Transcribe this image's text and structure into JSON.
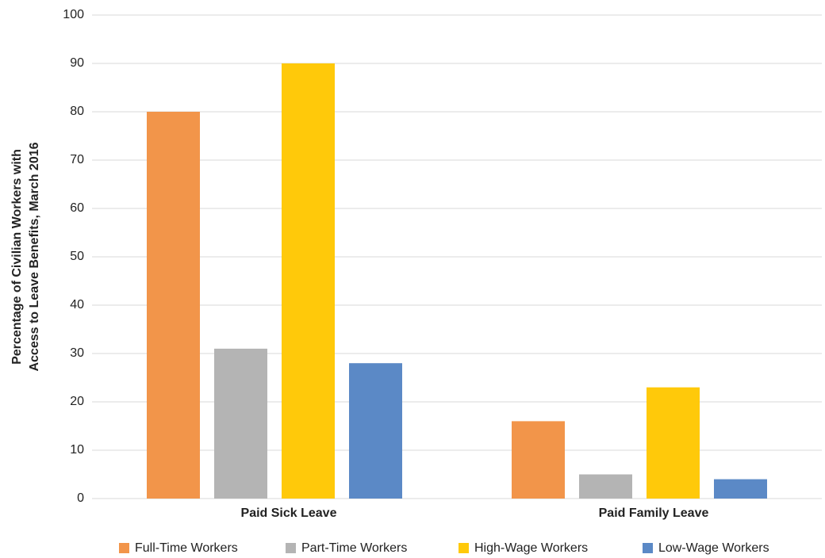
{
  "chart_data": {
    "type": "bar",
    "y_label": [
      "Percentage of Civilian Workers with",
      "Access to Leave Benefits, March 2016"
    ],
    "categories": [
      "Paid Sick Leave",
      "Paid Family Leave"
    ],
    "series": [
      {
        "name": "Full-Time Workers",
        "color": "#f2954a",
        "values": [
          80,
          16
        ]
      },
      {
        "name": "Part-Time Workers",
        "color": "#b4b4b4",
        "values": [
          31,
          5
        ]
      },
      {
        "name": "High-Wage Workers",
        "color": "#ffc90a",
        "values": [
          90,
          23
        ]
      },
      {
        "name": "Low-Wage Workers",
        "color": "#5b89c6",
        "values": [
          28,
          4
        ]
      }
    ],
    "ylim": [
      0,
      100
    ],
    "yticks": [
      0,
      10,
      20,
      30,
      40,
      50,
      60,
      70,
      80,
      90,
      100
    ],
    "grid": true,
    "legend": "bottom"
  }
}
